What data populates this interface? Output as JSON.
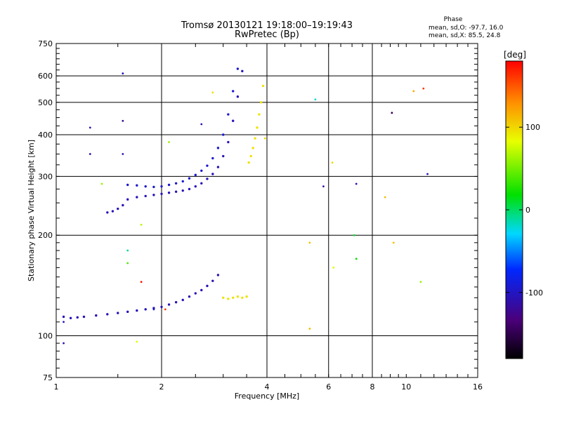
{
  "chart_data": {
    "type": "scatter",
    "title": "Tromsø 20130121 19:18:00–19:19:43",
    "subtitle": "RwPretec (Bp)",
    "xlabel": "Frequency [MHz]",
    "ylabel": "Stationary phase Virtual Height [km]",
    "x_scale": "log",
    "y_scale": "log",
    "xlim": [
      1,
      16
    ],
    "ylim": [
      75,
      750
    ],
    "x_ticks": [
      1,
      2,
      4,
      6,
      8,
      10,
      16
    ],
    "x_grid": [
      2,
      4,
      6,
      8
    ],
    "y_ticks": [
      75,
      100,
      200,
      300,
      400,
      500,
      600,
      750
    ],
    "y_grid": [
      100,
      200,
      300,
      400,
      500,
      600
    ],
    "grid": true,
    "phase_box": {
      "title": "Phase",
      "line_o": "mean, sd,O: -97.7, 16.0",
      "line_x": "mean, sd,X:  85.5, 24.8"
    },
    "colorbar": {
      "label": "[deg]",
      "range": [
        -180,
        180
      ],
      "ticks": [
        "100",
        "0",
        "-100"
      ],
      "tick_values": [
        100,
        0,
        -100
      ],
      "colormap": "rainbow"
    },
    "traces": [
      {
        "name": "E-layer O trace",
        "phase_deg": -105,
        "points": [
          [
            1.05,
            114
          ],
          [
            1.1,
            113
          ],
          [
            1.15,
            113.5
          ],
          [
            1.2,
            114
          ],
          [
            1.3,
            115
          ],
          [
            1.4,
            116
          ],
          [
            1.5,
            117
          ],
          [
            1.6,
            118
          ],
          [
            1.7,
            119
          ],
          [
            1.8,
            120
          ],
          [
            1.9,
            121
          ],
          [
            2.0,
            122
          ],
          [
            2.1,
            124
          ],
          [
            2.2,
            126
          ],
          [
            2.3,
            128
          ],
          [
            2.4,
            131
          ],
          [
            2.5,
            134
          ],
          [
            2.6,
            137
          ],
          [
            2.7,
            141
          ],
          [
            2.8,
            146
          ],
          [
            2.9,
            152
          ]
        ]
      },
      {
        "name": "F-layer O trace lower",
        "phase_deg": -105,
        "points": [
          [
            1.4,
            234
          ],
          [
            1.45,
            236
          ],
          [
            1.5,
            240
          ],
          [
            1.55,
            246
          ],
          [
            1.6,
            256
          ],
          [
            1.7,
            260
          ],
          [
            1.8,
            262
          ],
          [
            1.9,
            264
          ],
          [
            2.0,
            266
          ],
          [
            2.1,
            268
          ],
          [
            2.2,
            270
          ],
          [
            2.3,
            272
          ],
          [
            2.4,
            275
          ],
          [
            2.5,
            280
          ],
          [
            2.6,
            286
          ],
          [
            2.7,
            295
          ],
          [
            2.8,
            305
          ],
          [
            2.9,
            320
          ],
          [
            3.0,
            345
          ],
          [
            3.1,
            380
          ],
          [
            3.2,
            440
          ],
          [
            3.3,
            520
          ],
          [
            3.4,
            620
          ]
        ]
      },
      {
        "name": "F-layer O trace upper",
        "phase_deg": -95,
        "points": [
          [
            1.6,
            283
          ],
          [
            1.7,
            282
          ],
          [
            1.8,
            280
          ],
          [
            1.9,
            279
          ],
          [
            2.0,
            280
          ],
          [
            2.1,
            283
          ],
          [
            2.2,
            286
          ],
          [
            2.3,
            290
          ],
          [
            2.4,
            296
          ],
          [
            2.5,
            303
          ],
          [
            2.6,
            312
          ],
          [
            2.7,
            323
          ],
          [
            2.8,
            340
          ],
          [
            2.9,
            365
          ],
          [
            3.0,
            400
          ],
          [
            3.1,
            460
          ],
          [
            3.2,
            540
          ],
          [
            3.3,
            630
          ]
        ]
      },
      {
        "name": "F-layer X trace",
        "phase_deg": 95,
        "points": [
          [
            3.55,
            330
          ],
          [
            3.6,
            345
          ],
          [
            3.65,
            365
          ],
          [
            3.7,
            390
          ],
          [
            3.75,
            420
          ],
          [
            3.8,
            460
          ],
          [
            3.85,
            500
          ],
          [
            3.9,
            560
          ]
        ]
      },
      {
        "name": "E-layer X patch",
        "phase_deg": 95,
        "points": [
          [
            3.0,
            130
          ],
          [
            3.1,
            129
          ],
          [
            3.2,
            130
          ],
          [
            3.3,
            131
          ],
          [
            3.4,
            130
          ],
          [
            3.5,
            131
          ]
        ]
      }
    ],
    "noise_points": [
      [
        1.55,
        610,
        -100
      ],
      [
        1.55,
        440,
        -120
      ],
      [
        1.25,
        420,
        -110
      ],
      [
        1.25,
        350,
        -115
      ],
      [
        1.55,
        350,
        -105
      ],
      [
        1.35,
        285,
        60
      ],
      [
        1.05,
        110,
        -100
      ],
      [
        1.6,
        180,
        -10
      ],
      [
        1.6,
        165,
        40
      ],
      [
        1.75,
        145,
        175
      ],
      [
        1.9,
        120,
        -95
      ],
      [
        2.05,
        120,
        160
      ],
      [
        1.75,
        215,
        70
      ],
      [
        2.1,
        380,
        60
      ],
      [
        2.6,
        430,
        -110
      ],
      [
        2.8,
        535,
        95
      ],
      [
        3.95,
        390,
        100
      ],
      [
        5.5,
        510,
        -20
      ],
      [
        6.15,
        330,
        100
      ],
      [
        5.8,
        280,
        -120
      ],
      [
        7.2,
        285,
        -110
      ],
      [
        7.1,
        200,
        10
      ],
      [
        7.2,
        170,
        20
      ],
      [
        6.2,
        160,
        80
      ],
      [
        5.3,
        190,
        110
      ],
      [
        5.3,
        105,
        110
      ],
      [
        8.7,
        260,
        110
      ],
      [
        9.1,
        465,
        -150
      ],
      [
        9.2,
        190,
        110
      ],
      [
        10.5,
        540,
        120
      ],
      [
        11.2,
        550,
        160
      ],
      [
        11.5,
        305,
        -110
      ],
      [
        11.0,
        145,
        60
      ],
      [
        1.05,
        95,
        -110
      ],
      [
        1.7,
        96,
        80
      ]
    ]
  }
}
